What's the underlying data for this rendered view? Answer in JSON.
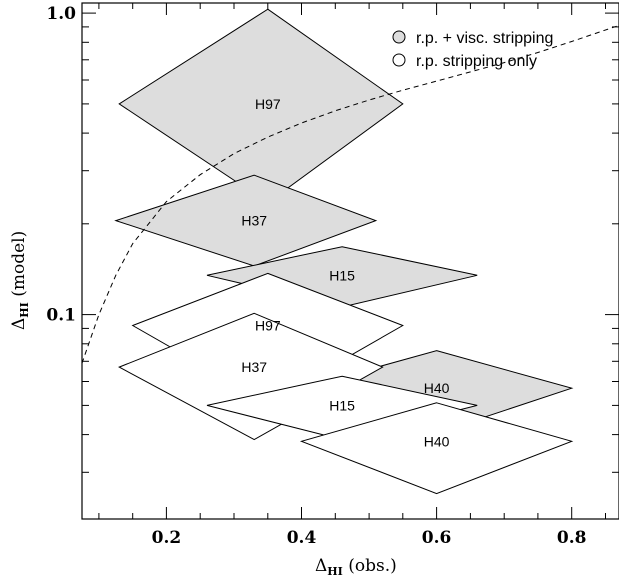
{
  "chart_data": {
    "type": "scatter",
    "x_axis": {
      "label_symbol": "Δ",
      "label_sub": "HI",
      "label_rest": " (obs.)",
      "range": [
        0.075,
        0.87
      ],
      "scale": "linear",
      "ticks": [
        0.2,
        0.4,
        0.6,
        0.8
      ],
      "tick_labels": [
        "0.2",
        "0.4",
        "0.6",
        "0.8"
      ]
    },
    "y_axis": {
      "label_symbol": "Δ",
      "label_sub": "HI",
      "label_rest": " (model)",
      "range": [
        0.021,
        1.08
      ],
      "scale": "log",
      "ticks": [
        0.1,
        1.0
      ],
      "tick_labels": [
        "0.1",
        "1.0"
      ]
    },
    "legend": {
      "placement": "top-right",
      "entries": [
        {
          "label": "r.p. + visc. stripping",
          "fill": "#dddddd"
        },
        {
          "label": "r.p. stripping only",
          "fill": "#ffffff"
        }
      ]
    },
    "series": [
      {
        "name": "r.p. + visc. stripping",
        "fill": "#dddddd",
        "points": [
          {
            "label": "H97",
            "x": 0.35,
            "y": 0.5,
            "xmin": 0.13,
            "xmax": 0.55,
            "ymin": 0.235,
            "ymax": 1.03
          },
          {
            "label": "H37",
            "x": 0.33,
            "y": 0.205,
            "xmin": 0.125,
            "xmax": 0.51,
            "ymin": 0.145,
            "ymax": 0.29
          },
          {
            "label": "H15",
            "x": 0.46,
            "y": 0.135,
            "xmin": 0.26,
            "xmax": 0.66,
            "ymin": 0.106,
            "ymax": 0.168
          },
          {
            "label": "H40",
            "x": 0.6,
            "y": 0.057,
            "xmin": 0.4,
            "xmax": 0.8,
            "ymin": 0.0405,
            "ymax": 0.076
          }
        ]
      },
      {
        "name": "r.p. stripping only",
        "fill": "#ffffff",
        "points": [
          {
            "label": "H97",
            "x": 0.35,
            "y": 0.092,
            "xmin": 0.15,
            "xmax": 0.55,
            "ymin": 0.051,
            "ymax": 0.137
          },
          {
            "label": "H37",
            "x": 0.33,
            "y": 0.067,
            "xmin": 0.13,
            "xmax": 0.52,
            "ymin": 0.0385,
            "ymax": 0.101
          },
          {
            "label": "H15",
            "x": 0.46,
            "y": 0.05,
            "xmin": 0.26,
            "xmax": 0.66,
            "ymin": 0.0385,
            "ymax": 0.0625
          },
          {
            "label": "H40",
            "x": 0.6,
            "y": 0.038,
            "xmin": 0.4,
            "xmax": 0.8,
            "ymin": 0.0255,
            "ymax": 0.051
          }
        ]
      }
    ],
    "reference_curve": {
      "style": "dashed",
      "x": [
        0.075,
        0.1,
        0.125,
        0.15,
        0.2,
        0.25,
        0.3,
        0.35,
        0.4,
        0.45,
        0.5,
        0.55,
        0.6,
        0.65,
        0.7,
        0.75,
        0.8,
        0.87
      ],
      "y": [
        0.069,
        0.1,
        0.135,
        0.172,
        0.237,
        0.291,
        0.342,
        0.388,
        0.432,
        0.474,
        0.515,
        0.555,
        0.595,
        0.638,
        0.685,
        0.74,
        0.805,
        0.91
      ]
    }
  }
}
